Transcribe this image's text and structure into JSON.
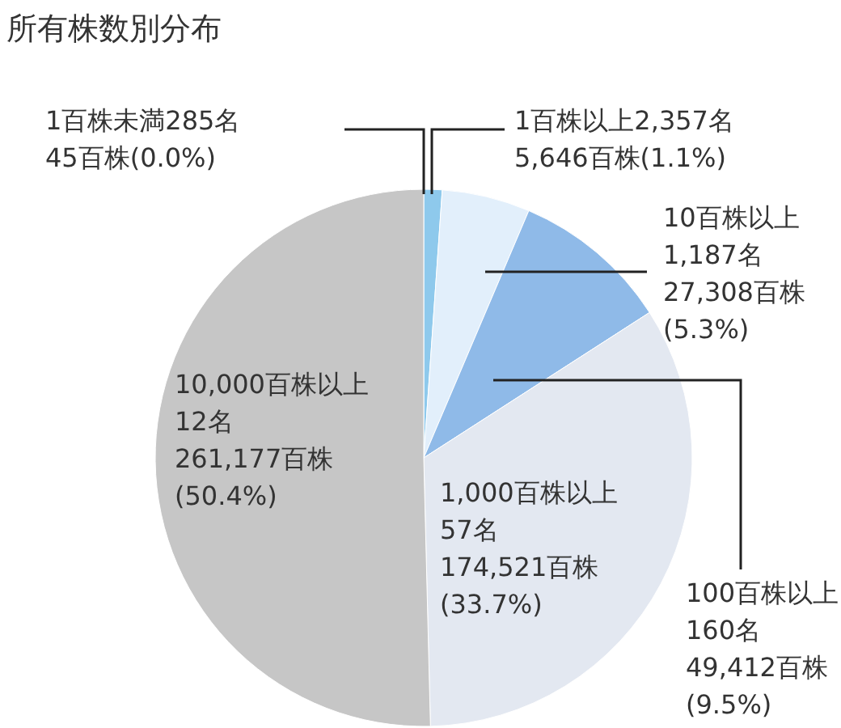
{
  "chart_data": {
    "type": "pie",
    "title": "所有株数別分布",
    "categories": [
      "1百株未満",
      "1百株以上",
      "10百株以上",
      "100百株以上",
      "1,000百株以上",
      "10,000百株以上"
    ],
    "values": [
      0.0,
      1.1,
      5.3,
      9.5,
      33.7,
      50.4
    ],
    "colors": [
      "#5aaad8",
      "#8ec9ec",
      "#e2effb",
      "#8fbae8",
      "#e3e8f1",
      "#c6c6c6"
    ],
    "value_labels": [
      "285名\n45百株(0.0%)",
      "2,357名\n5,646百株(1.1%)",
      "1,187名\n27,308百株\n(5.3%)",
      "160名\n49,412百株\n(9.5%)",
      "57名\n174,521百株\n(33.7%)",
      "12名\n261,177百株\n(50.4%)"
    ]
  }
}
